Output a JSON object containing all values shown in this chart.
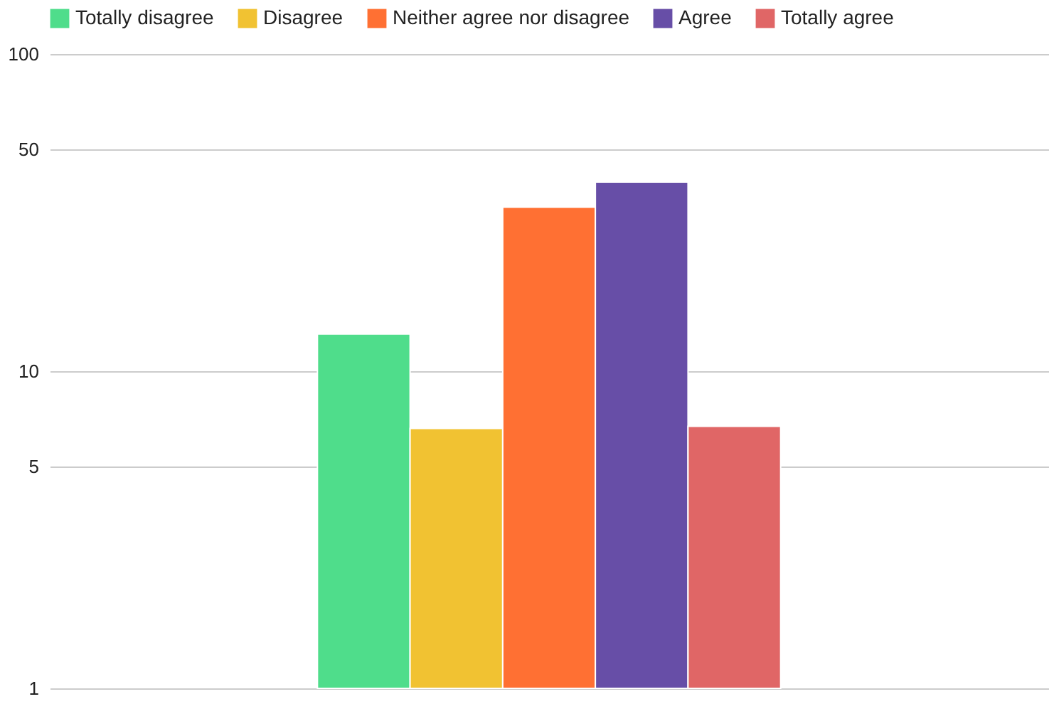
{
  "chart_data": {
    "type": "bar",
    "categories": [
      null
    ],
    "log": "y",
    "ylim": [
      1,
      100
    ],
    "yticks": [
      1,
      5,
      10,
      50,
      100
    ],
    "grid": "y",
    "legend": "top",
    "tick_labels": "y",
    "series": [
      {
        "name": "Totally disagree",
        "color": "#4fdd8b",
        "values": [
          13.1
        ]
      },
      {
        "name": "Disagree",
        "color": "#f1c232",
        "values": [
          6.6
        ]
      },
      {
        "name": "Neither agree nor disagree",
        "color": "#ff7033",
        "values": [
          32.9
        ]
      },
      {
        "name": "Agree",
        "color": "#674ea7",
        "values": [
          39.5
        ]
      },
      {
        "name": "Totally agree",
        "color": "#e06666",
        "values": [
          6.7
        ]
      }
    ]
  }
}
